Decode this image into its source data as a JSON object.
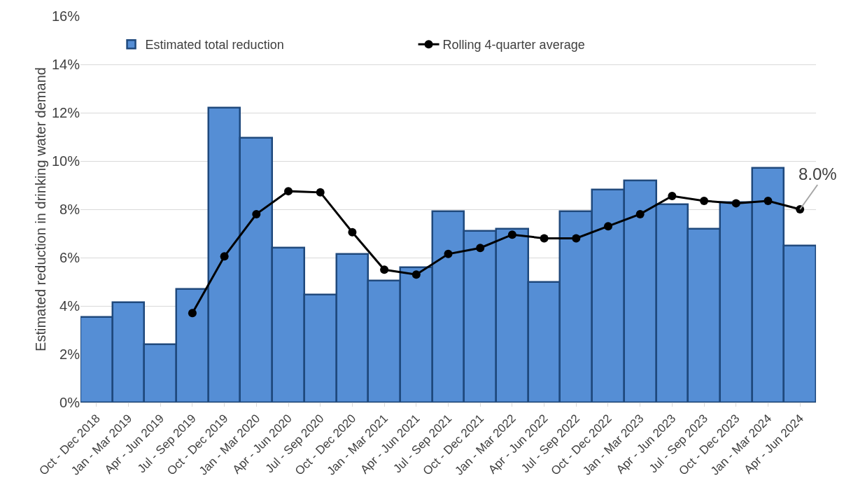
{
  "chart_data": {
    "type": "bar",
    "ylabel": "Estimated reduction in drinking water demand",
    "categories": [
      "Oct - Dec 2018",
      "Jan - Mar 2019",
      "Apr - Jun 2019",
      "Jul - Sep 2019",
      "Oct - Dec 2019",
      "Jan - Mar 2020",
      "Apr - Jun 2020",
      "Jul - Sep 2020",
      "Oct - Dec 2020",
      "Jan - Mar 2021",
      "Apr - Jun 2021",
      "Jul - Sep 2021",
      "Oct - Dec 2021",
      "Jan - Mar 2022",
      "Apr - Jun 2022",
      "Jul - Sep 2022",
      "Oct - Dec 2022",
      "Jan - Mar 2023",
      "Apr - Jun 2023",
      "Jul - Sep 2023",
      "Oct - Dec 2023",
      "Jan - Mar 2024",
      "Apr - Jun 2024"
    ],
    "series": [
      {
        "name": "Estimated total reduction",
        "color": "#558ed5",
        "values": [
          3.55,
          4.15,
          2.4,
          4.7,
          12.2,
          10.95,
          6.4,
          4.45,
          6.15,
          5.05,
          5.6,
          7.9,
          7.1,
          7.2,
          5.0,
          7.9,
          8.8,
          9.2,
          8.2,
          7.2,
          8.3,
          9.7,
          6.5
        ]
      },
      {
        "name": "Rolling 4-quarter average",
        "type": "line",
        "color": "#000000",
        "marker": "circle",
        "values": [
          null,
          null,
          null,
          3.7,
          6.05,
          7.8,
          8.75,
          8.7,
          7.05,
          5.5,
          5.3,
          6.15,
          6.4,
          6.95,
          6.8,
          6.8,
          7.3,
          7.8,
          8.55,
          8.35,
          8.25,
          8.35,
          8.0
        ]
      }
    ],
    "annotations": [
      {
        "text": "8.0%",
        "x": "Apr - Jun 2024",
        "y": 8.0
      }
    ],
    "ylim": [
      0,
      16
    ],
    "yticks": [
      {
        "value": 0,
        "label": "0%"
      },
      {
        "value": 2,
        "label": "2%"
      },
      {
        "value": 4,
        "label": "4%"
      },
      {
        "value": 6,
        "label": "6%"
      },
      {
        "value": 8,
        "label": "8%"
      },
      {
        "value": 10,
        "label": "10%"
      },
      {
        "value": 12,
        "label": "12%"
      },
      {
        "value": 14,
        "label": "14%"
      },
      {
        "value": 16,
        "label": "16%"
      }
    ],
    "grid": "y",
    "legend": "top left"
  }
}
